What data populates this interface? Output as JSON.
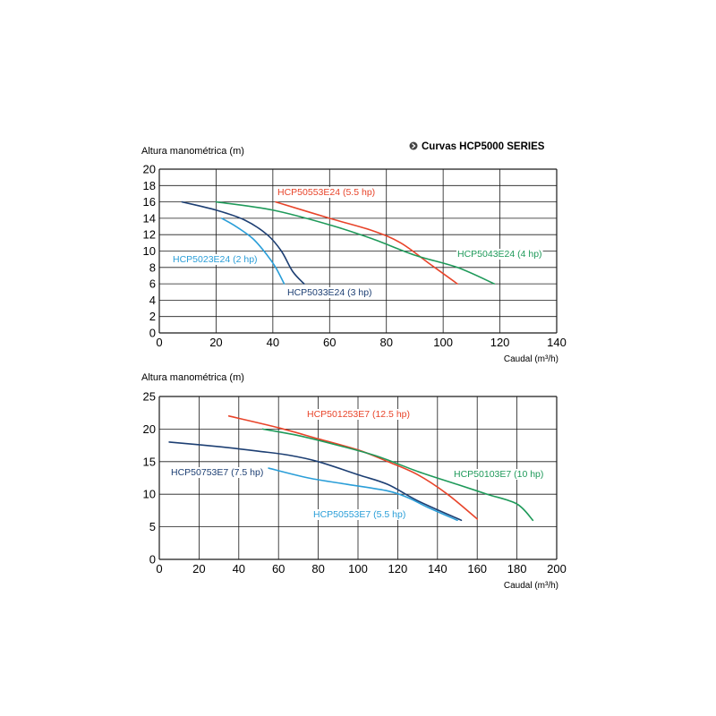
{
  "header": {
    "title": "Curvas HCP5000 SERIES",
    "bullet_icon": "circle-arrow-icon"
  },
  "chart_data": [
    {
      "type": "line",
      "ylabel": "Altura manométrica (m)",
      "xlabel": "Caudal (m³/h)",
      "xlim": [
        0,
        140
      ],
      "ylim": [
        0,
        20
      ],
      "xticks": [
        0,
        20,
        40,
        60,
        80,
        100,
        120,
        140
      ],
      "yticks": [
        0,
        2,
        4,
        6,
        8,
        10,
        12,
        14,
        16,
        18,
        20
      ],
      "grid": true,
      "series": [
        {
          "name": "HCP50553E24 (5.5 hp)",
          "color": "#e8442a",
          "x": [
            41,
            60,
            75,
            85,
            95,
            105
          ],
          "y": [
            16,
            14,
            12.5,
            11,
            8.5,
            6
          ]
        },
        {
          "name": "HCP5043E24 (4 hp)",
          "color": "#1f9a5a",
          "x": [
            20,
            40,
            60,
            75,
            90,
            105,
            118
          ],
          "y": [
            16,
            15,
            13.2,
            11.5,
            9.5,
            8,
            6
          ]
        },
        {
          "name": "HCP5023E24 (2 hp)",
          "color": "#2a9ed8",
          "x": [
            22,
            27,
            33,
            38,
            41,
            44
          ],
          "y": [
            14,
            13,
            11.5,
            9.5,
            8,
            6
          ]
        },
        {
          "name": "HCP5033E24 (3 hp)",
          "color": "#1d3f73",
          "x": [
            8,
            20,
            30,
            38,
            43,
            47,
            51
          ],
          "y": [
            16,
            15,
            13.8,
            12,
            10,
            7.5,
            6
          ]
        }
      ]
    },
    {
      "type": "line",
      "ylabel": "Altura manométrica (m)",
      "xlabel": "Caudal (m³/h)",
      "xlim": [
        0,
        200
      ],
      "ylim": [
        0,
        25
      ],
      "xticks": [
        0,
        20,
        40,
        60,
        80,
        100,
        120,
        140,
        160,
        180,
        200
      ],
      "yticks": [
        0,
        5,
        10,
        15,
        20,
        25
      ],
      "grid": true,
      "series": [
        {
          "name": "HCP501253E7 (12.5 hp)",
          "color": "#e8442a",
          "x": [
            35,
            60,
            80,
            100,
            115,
            130,
            145,
            160
          ],
          "y": [
            22,
            20.2,
            18.5,
            16.8,
            15,
            13,
            10,
            6.2
          ]
        },
        {
          "name": "HCP50103E7 (10 hp)",
          "color": "#1f9a5a",
          "x": [
            52,
            70,
            90,
            110,
            130,
            150,
            165,
            180,
            188
          ],
          "y": [
            20,
            19,
            17.5,
            15.8,
            13.5,
            11.5,
            10,
            8.5,
            6
          ]
        },
        {
          "name": "HCP50753E7 (7.5 hp)",
          "color": "#1d3f73",
          "x": [
            5,
            30,
            50,
            65,
            80,
            100,
            115,
            130,
            152
          ],
          "y": [
            18,
            17.3,
            16.6,
            16,
            15,
            13,
            11.5,
            9,
            6
          ]
        },
        {
          "name": "HCP50553E7 (5.5 hp)",
          "color": "#2a9ed8",
          "x": [
            55,
            75,
            95,
            115,
            125,
            135,
            150
          ],
          "y": [
            14,
            12.5,
            11.5,
            10.5,
            9.5,
            8,
            6
          ]
        }
      ]
    }
  ]
}
